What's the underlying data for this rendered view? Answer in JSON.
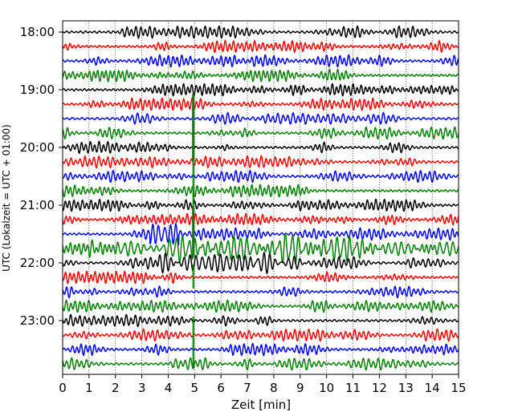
{
  "chart_data": {
    "type": "line",
    "title": "",
    "xlabel": "Zeit  [min]",
    "ylabel": "UTC (Lokalzeit = UTC + 01:00)",
    "xlim": [
      0,
      15
    ],
    "x_ticks": [
      0,
      1,
      2,
      3,
      4,
      5,
      6,
      7,
      8,
      9,
      10,
      11,
      12,
      13,
      14,
      15
    ],
    "x_tick_labels": [
      "0",
      "1",
      "2",
      "3",
      "4",
      "5",
      "6",
      "7",
      "8",
      "9",
      "10",
      "11",
      "12",
      "13",
      "14",
      "15"
    ],
    "y_tick_labels": [
      "18:00",
      "19:00",
      "20:00",
      "21:00",
      "22:00",
      "23:00"
    ],
    "grid": "vertical dotted",
    "start_time": "18:00",
    "trace_interval_minutes": 15,
    "trace_count": 24,
    "trace_colors": [
      "#000000",
      "#ff0000",
      "#0000ff",
      "#008000"
    ],
    "events": [
      {
        "trace_start": "21:45",
        "note": "strong green high-amplitude oscillation, minutes 1–15"
      },
      {
        "trace_start": "various",
        "note": "vertical green spike near minute 5"
      }
    ]
  }
}
